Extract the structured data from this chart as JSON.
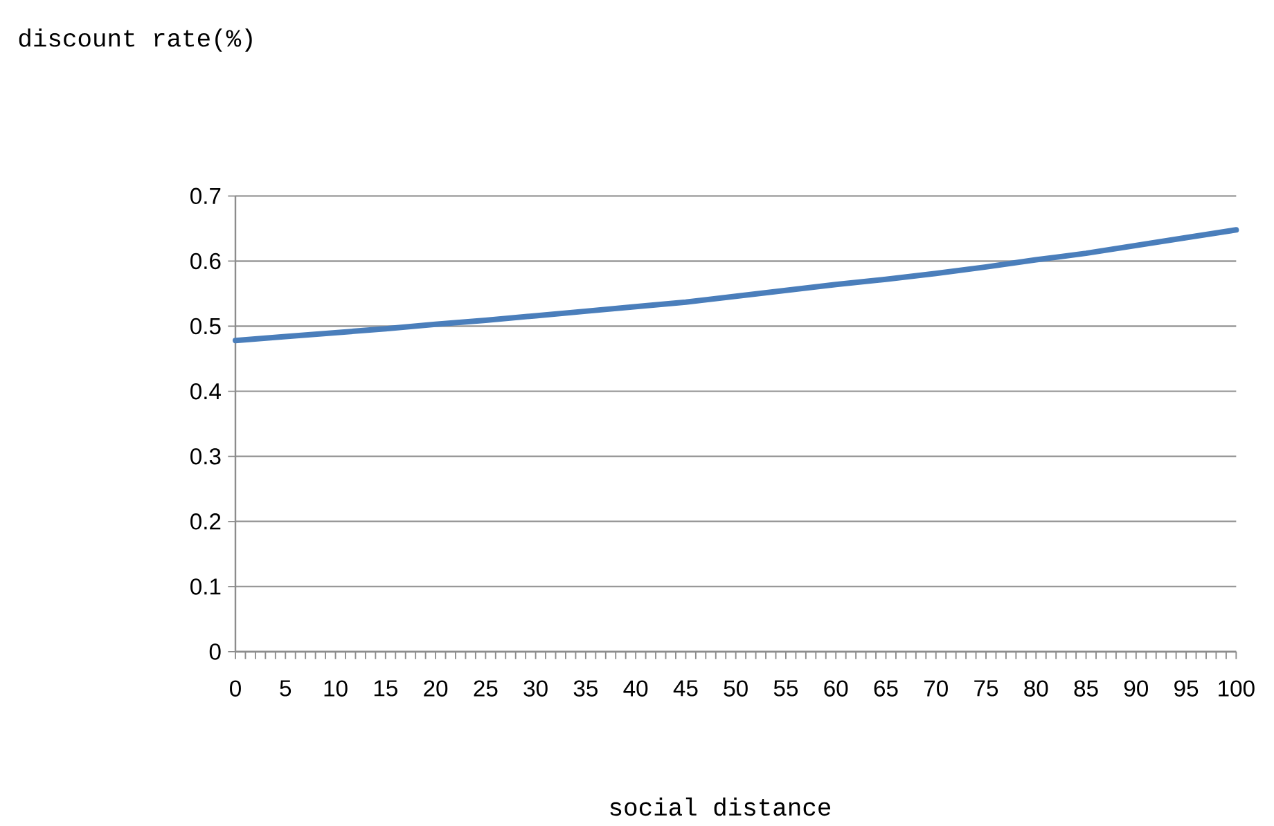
{
  "chart_data": {
    "type": "line",
    "xlabel": "social distance",
    "annotations": [
      "discount rate(%)"
    ],
    "x": [
      0,
      5,
      10,
      15,
      20,
      25,
      30,
      35,
      40,
      45,
      50,
      55,
      60,
      65,
      70,
      75,
      80,
      85,
      90,
      95,
      100
    ],
    "series": [
      {
        "color": "#4a7ebb",
        "values": [
          0.478,
          0.484,
          0.49,
          0.496,
          0.503,
          0.509,
          0.516,
          0.523,
          0.53,
          0.537,
          0.546,
          0.555,
          0.564,
          0.572,
          0.581,
          0.591,
          0.602,
          0.612,
          0.624,
          0.636,
          0.648
        ]
      }
    ],
    "xlim": [
      0,
      100
    ],
    "xticks": [
      0,
      {
        "value": 1,
        "label": null
      },
      {
        "value": 2,
        "label": null
      },
      {
        "value": 3,
        "label": null
      },
      {
        "value": 4,
        "label": null
      },
      5,
      {
        "value": 6,
        "label": null
      },
      {
        "value": 7,
        "label": null
      },
      {
        "value": 8,
        "label": null
      },
      {
        "value": 9,
        "label": null
      },
      10,
      {
        "value": 11,
        "label": null
      },
      {
        "value": 12,
        "label": null
      },
      {
        "value": 13,
        "label": null
      },
      {
        "value": 14,
        "label": null
      },
      15,
      {
        "value": 16,
        "label": null
      },
      {
        "value": 17,
        "label": null
      },
      {
        "value": 18,
        "label": null
      },
      {
        "value": 19,
        "label": null
      },
      20,
      {
        "value": 21,
        "label": null
      },
      {
        "value": 22,
        "label": null
      },
      {
        "value": 23,
        "label": null
      },
      {
        "value": 24,
        "label": null
      },
      25,
      {
        "value": 26,
        "label": null
      },
      {
        "value": 27,
        "label": null
      },
      {
        "value": 28,
        "label": null
      },
      {
        "value": 29,
        "label": null
      },
      30,
      {
        "value": 31,
        "label": null
      },
      {
        "value": 32,
        "label": null
      },
      {
        "value": 33,
        "label": null
      },
      {
        "value": 34,
        "label": null
      },
      35,
      {
        "value": 36,
        "label": null
      },
      {
        "value": 37,
        "label": null
      },
      {
        "value": 38,
        "label": null
      },
      {
        "value": 39,
        "label": null
      },
      40,
      {
        "value": 41,
        "label": null
      },
      {
        "value": 42,
        "label": null
      },
      {
        "value": 43,
        "label": null
      },
      {
        "value": 44,
        "label": null
      },
      45,
      {
        "value": 46,
        "label": null
      },
      {
        "value": 47,
        "label": null
      },
      {
        "value": 48,
        "label": null
      },
      {
        "value": 49,
        "label": null
      },
      50,
      {
        "value": 51,
        "label": null
      },
      {
        "value": 52,
        "label": null
      },
      {
        "value": 53,
        "label": null
      },
      {
        "value": 54,
        "label": null
      },
      55,
      {
        "value": 56,
        "label": null
      },
      {
        "value": 57,
        "label": null
      },
      {
        "value": 58,
        "label": null
      },
      {
        "value": 59,
        "label": null
      },
      60,
      {
        "value": 61,
        "label": null
      },
      {
        "value": 62,
        "label": null
      },
      {
        "value": 63,
        "label": null
      },
      {
        "value": 64,
        "label": null
      },
      65,
      {
        "value": 66,
        "label": null
      },
      {
        "value": 67,
        "label": null
      },
      {
        "value": 68,
        "label": null
      },
      {
        "value": 69,
        "label": null
      },
      70,
      {
        "value": 71,
        "label": null
      },
      {
        "value": 72,
        "label": null
      },
      {
        "value": 73,
        "label": null
      },
      {
        "value": 74,
        "label": null
      },
      75,
      {
        "value": 76,
        "label": null
      },
      {
        "value": 77,
        "label": null
      },
      {
        "value": 78,
        "label": null
      },
      {
        "value": 79,
        "label": null
      },
      80,
      {
        "value": 81,
        "label": null
      },
      {
        "value": 82,
        "label": null
      },
      {
        "value": 83,
        "label": null
      },
      {
        "value": 84,
        "label": null
      },
      85,
      {
        "value": 86,
        "label": null
      },
      {
        "value": 87,
        "label": null
      },
      {
        "value": 88,
        "label": null
      },
      {
        "value": 89,
        "label": null
      },
      90,
      {
        "value": 91,
        "label": null
      },
      {
        "value": 92,
        "label": null
      },
      {
        "value": 93,
        "label": null
      },
      {
        "value": 94,
        "label": null
      },
      95,
      {
        "value": 96,
        "label": null
      },
      {
        "value": 97,
        "label": null
      },
      {
        "value": 98,
        "label": null
      },
      {
        "value": 99,
        "label": null
      },
      100
    ],
    "ylim": [
      0,
      0.7
    ],
    "yticks": [
      0,
      0.1,
      0.2,
      0.3,
      0.4,
      0.5,
      0.6,
      0.7
    ],
    "grid": "y"
  }
}
